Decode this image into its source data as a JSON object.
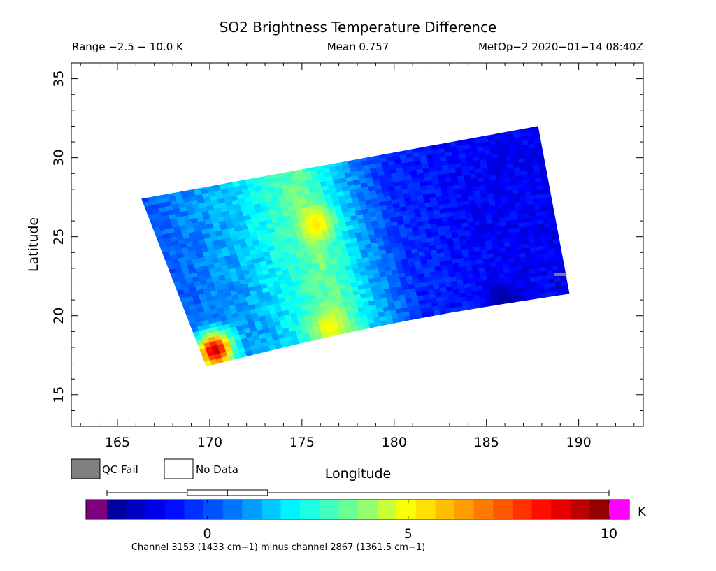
{
  "header": {
    "title": "SO2 Brightness Temperature Difference",
    "range_text": "Range −2.5 − 10.0 K",
    "mean_text": "Mean 0.757",
    "satellite_text": "MetOp−2 2020−01−14 08:40Z"
  },
  "legend": {
    "qc_fail_label": "QC Fail",
    "no_data_label": "No Data",
    "qc_fail_color": "#7f7f7f",
    "no_data_color": "#ffffff"
  },
  "colorbar": {
    "unit": "K",
    "caption": "Channel 3153 (1433 cm−1) minus channel 2867 (1361.5 cm−1)",
    "vmin": -2.5,
    "vmax": 10.0,
    "ticks": [
      {
        "value": 0,
        "label": "0"
      },
      {
        "value": 5,
        "label": "5"
      },
      {
        "value": 10,
        "label": "10"
      }
    ],
    "under_color": "#800080",
    "over_color": "#ff00ff",
    "boxplot": {
      "whisker_low": -2.5,
      "q1": -0.5,
      "median": 0.5,
      "q3": 1.5,
      "whisker_high": 10.0
    }
  },
  "chart_data": {
    "type": "heatmap",
    "title": "SO2 Brightness Temperature Difference",
    "xlabel": "Longitude",
    "ylabel": "Latitude",
    "xlim": [
      162.5,
      193.5
    ],
    "ylim": [
      13,
      36
    ],
    "x_ticks": [
      165,
      170,
      175,
      180,
      185,
      190
    ],
    "y_ticks": [
      15,
      20,
      25,
      30,
      35
    ],
    "swath_corners": {
      "top_left": [
        166.3,
        27.4
      ],
      "top_right": [
        187.8,
        32.0
      ],
      "bottom_right": [
        189.5,
        21.4
      ],
      "bottom_left": [
        169.8,
        16.8
      ]
    },
    "column_profile": [
      {
        "lon_frac": 0.0,
        "value": 0.2
      },
      {
        "lon_frac": 0.2,
        "value": 1.5
      },
      {
        "lon_frac": 0.38,
        "value": 3.6
      },
      {
        "lon_frac": 0.48,
        "value": 1.5
      },
      {
        "lon_frac": 0.6,
        "value": -0.4
      },
      {
        "lon_frac": 0.8,
        "value": -1.0
      },
      {
        "lon_frac": 1.0,
        "value": -1.2
      }
    ],
    "hotspots": [
      {
        "lon": 170.3,
        "lat": 17.8,
        "value": 9.2
      },
      {
        "lon": 175.8,
        "lat": 25.8,
        "value": 5.3
      },
      {
        "lon": 176.5,
        "lat": 19.3,
        "value": 5.0
      },
      {
        "lon": 186.0,
        "lat": 20.8,
        "value": -2.3
      }
    ],
    "qc_fail_points": [
      {
        "lon": 189.0,
        "lat": 22.6
      }
    ],
    "colormap_stops": [
      {
        "value": -2.5,
        "color": "#00008c"
      },
      {
        "value": -1.0,
        "color": "#0000ff"
      },
      {
        "value": 0.8,
        "color": "#0080ff"
      },
      {
        "value": 2.2,
        "color": "#00ffff"
      },
      {
        "value": 3.8,
        "color": "#80ff80"
      },
      {
        "value": 5.0,
        "color": "#ffff00"
      },
      {
        "value": 6.8,
        "color": "#ff8000"
      },
      {
        "value": 8.5,
        "color": "#ff0000"
      },
      {
        "value": 10.0,
        "color": "#800000"
      }
    ]
  }
}
